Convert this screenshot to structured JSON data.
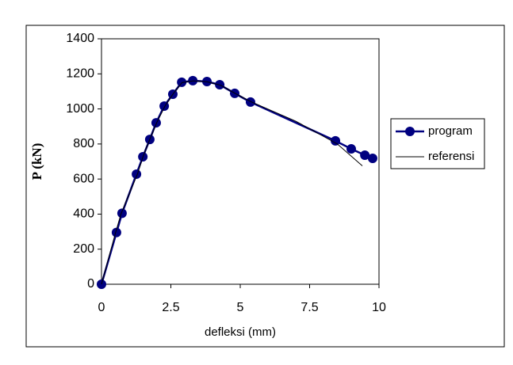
{
  "chart_data": {
    "type": "line",
    "xlabel": "defleksi (mm)",
    "ylabel": "P (kN)",
    "xlim": [
      0,
      10
    ],
    "xticks": [
      0,
      2.5,
      5,
      7.5,
      10
    ],
    "ylim": [
      0,
      1400
    ],
    "yticks": [
      0,
      200,
      400,
      600,
      800,
      1000,
      1200,
      1400
    ],
    "legend": "right",
    "series": [
      {
        "name": "program",
        "color": "#000080",
        "marker": true,
        "x": [
          0,
          0.54,
          0.74,
          1.26,
          1.49,
          1.74,
          1.97,
          2.26,
          2.57,
          2.89,
          3.29,
          3.8,
          4.26,
          4.8,
          5.37,
          8.43,
          9.0,
          9.49,
          9.77
        ],
        "values": [
          0,
          295,
          405,
          628,
          727,
          826,
          921,
          1016,
          1084,
          1152,
          1161,
          1156,
          1138,
          1089,
          1039,
          818,
          772,
          736,
          718
        ]
      },
      {
        "name": "referensi",
        "color": "#000000",
        "marker": false,
        "x": [
          0,
          0.5,
          0.7,
          1.3,
          1.5,
          1.75,
          2,
          2.3,
          2.6,
          2.9,
          3.3,
          3.8,
          4.3,
          4.8,
          5.4,
          7,
          8.5,
          9.4
        ],
        "values": [
          0,
          290,
          400,
          630,
          730,
          830,
          925,
          1020,
          1090,
          1150,
          1160,
          1155,
          1135,
          1090,
          1040,
          930,
          800,
          675
        ]
      }
    ]
  }
}
